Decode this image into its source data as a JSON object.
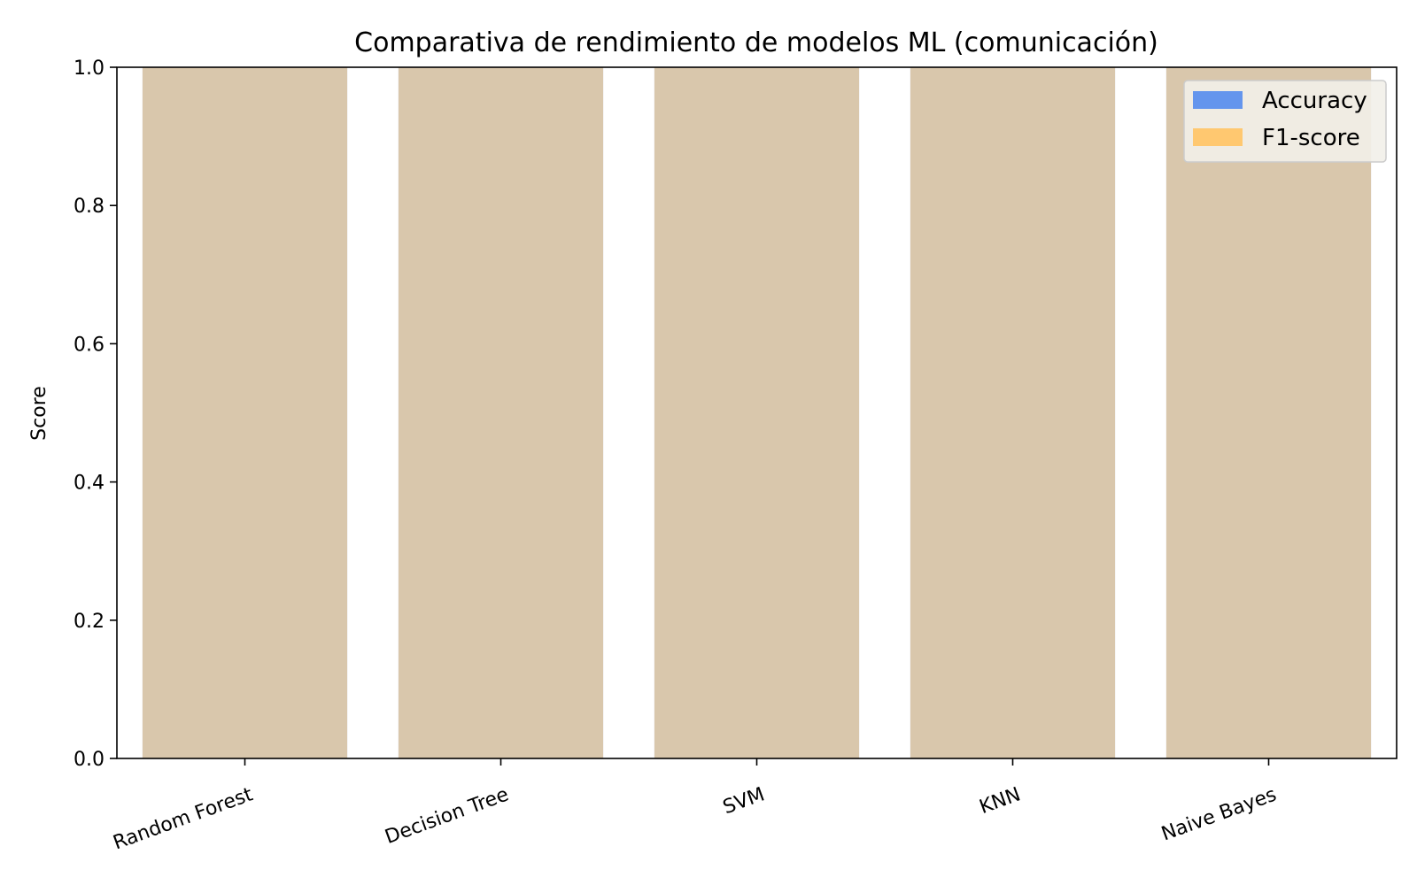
{
  "chart_data": {
    "type": "bar",
    "title": "Comparativa de rendimiento de modelos ML (comunicación)",
    "xlabel": "",
    "ylabel": "Score",
    "categories": [
      "Random Forest",
      "Decision Tree",
      "SVM",
      "KNN",
      "Naive Bayes"
    ],
    "series": [
      {
        "name": "Accuracy",
        "values": [
          1.0,
          1.0,
          1.0,
          1.0,
          1.0
        ],
        "color": "#6495ED"
      },
      {
        "name": "F1-score",
        "values": [
          1.0,
          1.0,
          1.0,
          1.0,
          1.0
        ],
        "color": "#FFC870"
      }
    ],
    "overlap_color": "#B39E78",
    "ylim": [
      0,
      1.0
    ],
    "yticks": [
      "0.0",
      "0.2",
      "0.4",
      "0.6",
      "0.8",
      "1.0"
    ],
    "grid": false,
    "legend_position": "top-right"
  }
}
